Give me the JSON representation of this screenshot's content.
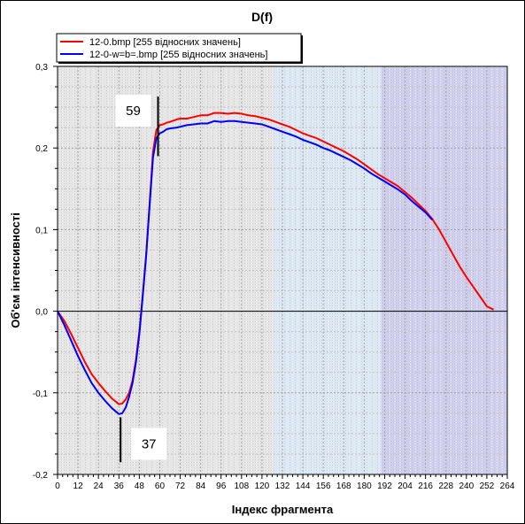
{
  "chart_data": {
    "type": "line",
    "title": "D(f)",
    "xlabel": "Індекс фрагмента",
    "ylabel": "Об'єм інтенсивності",
    "xlim": [
      0,
      264
    ],
    "ylim": [
      -0.2,
      0.3
    ],
    "xticks": [
      0,
      12,
      24,
      36,
      48,
      60,
      72,
      84,
      96,
      108,
      120,
      132,
      144,
      156,
      168,
      180,
      192,
      204,
      216,
      228,
      240,
      252,
      264
    ],
    "yticks": [
      -0.2,
      -0.1,
      0.0,
      0.1,
      0.2,
      0.3
    ],
    "ytick_labels": [
      "-0,2",
      "-0,1",
      "0,0",
      "0,1",
      "0,2",
      "0,3"
    ],
    "grid": true,
    "legend_position": "top-left",
    "background_bands": [
      {
        "from": 0,
        "to": 127,
        "color": "#e6e6e6"
      },
      {
        "from": 127,
        "to": 190,
        "color": "#dce9f5"
      },
      {
        "from": 190,
        "to": 264,
        "color": "#d0d0ee"
      }
    ],
    "series": [
      {
        "name": "12-0.bmp [255 відносних значень]",
        "color": "#ff0000",
        "points": [
          [
            0,
            0.0
          ],
          [
            4,
            -0.012
          ],
          [
            8,
            -0.028
          ],
          [
            12,
            -0.045
          ],
          [
            16,
            -0.062
          ],
          [
            20,
            -0.077
          ],
          [
            24,
            -0.088
          ],
          [
            28,
            -0.098
          ],
          [
            32,
            -0.107
          ],
          [
            36,
            -0.114
          ],
          [
            38,
            -0.113
          ],
          [
            40,
            -0.108
          ],
          [
            42,
            -0.1
          ],
          [
            44,
            -0.085
          ],
          [
            46,
            -0.06
          ],
          [
            48,
            -0.025
          ],
          [
            50,
            0.02
          ],
          [
            52,
            0.07
          ],
          [
            54,
            0.13
          ],
          [
            56,
            0.195
          ],
          [
            58,
            0.222
          ],
          [
            60,
            0.228
          ],
          [
            62,
            0.229
          ],
          [
            64,
            0.231
          ],
          [
            66,
            0.232
          ],
          [
            70,
            0.235
          ],
          [
            72,
            0.236
          ],
          [
            76,
            0.236
          ],
          [
            80,
            0.238
          ],
          [
            84,
            0.24
          ],
          [
            88,
            0.24
          ],
          [
            92,
            0.243
          ],
          [
            96,
            0.243
          ],
          [
            100,
            0.242
          ],
          [
            104,
            0.243
          ],
          [
            108,
            0.242
          ],
          [
            112,
            0.24
          ],
          [
            116,
            0.239
          ],
          [
            120,
            0.237
          ],
          [
            124,
            0.235
          ],
          [
            128,
            0.232
          ],
          [
            132,
            0.229
          ],
          [
            136,
            0.226
          ],
          [
            140,
            0.222
          ],
          [
            144,
            0.218
          ],
          [
            148,
            0.215
          ],
          [
            152,
            0.212
          ],
          [
            156,
            0.208
          ],
          [
            160,
            0.204
          ],
          [
            164,
            0.2
          ],
          [
            168,
            0.196
          ],
          [
            172,
            0.191
          ],
          [
            176,
            0.186
          ],
          [
            180,
            0.18
          ],
          [
            184,
            0.174
          ],
          [
            188,
            0.168
          ],
          [
            192,
            0.163
          ],
          [
            196,
            0.158
          ],
          [
            200,
            0.153
          ],
          [
            204,
            0.146
          ],
          [
            208,
            0.139
          ],
          [
            212,
            0.131
          ],
          [
            216,
            0.123
          ],
          [
            220,
            0.113
          ],
          [
            224,
            0.1
          ],
          [
            228,
            0.085
          ],
          [
            232,
            0.07
          ],
          [
            236,
            0.055
          ],
          [
            240,
            0.042
          ],
          [
            244,
            0.03
          ],
          [
            248,
            0.018
          ],
          [
            252,
            0.006
          ],
          [
            256,
            0.002
          ]
        ]
      },
      {
        "name": "12-0-w=b=.bmp [255 відносних значень]",
        "color": "#0000ff",
        "points": [
          [
            0,
            0.0
          ],
          [
            4,
            -0.017
          ],
          [
            8,
            -0.036
          ],
          [
            12,
            -0.055
          ],
          [
            16,
            -0.072
          ],
          [
            20,
            -0.088
          ],
          [
            24,
            -0.1
          ],
          [
            28,
            -0.11
          ],
          [
            32,
            -0.119
          ],
          [
            36,
            -0.126
          ],
          [
            38,
            -0.125
          ],
          [
            40,
            -0.118
          ],
          [
            42,
            -0.105
          ],
          [
            44,
            -0.088
          ],
          [
            46,
            -0.063
          ],
          [
            48,
            -0.028
          ],
          [
            50,
            0.018
          ],
          [
            52,
            0.068
          ],
          [
            54,
            0.128
          ],
          [
            56,
            0.188
          ],
          [
            58,
            0.212
          ],
          [
            60,
            0.218
          ],
          [
            62,
            0.22
          ],
          [
            64,
            0.223
          ],
          [
            66,
            0.224
          ],
          [
            70,
            0.225
          ],
          [
            72,
            0.226
          ],
          [
            76,
            0.228
          ],
          [
            80,
            0.229
          ],
          [
            84,
            0.23
          ],
          [
            88,
            0.23
          ],
          [
            92,
            0.233
          ],
          [
            96,
            0.232
          ],
          [
            100,
            0.233
          ],
          [
            104,
            0.233
          ],
          [
            108,
            0.232
          ],
          [
            112,
            0.231
          ],
          [
            116,
            0.23
          ],
          [
            120,
            0.229
          ],
          [
            124,
            0.226
          ],
          [
            128,
            0.223
          ],
          [
            132,
            0.22
          ],
          [
            136,
            0.217
          ],
          [
            140,
            0.214
          ],
          [
            144,
            0.21
          ],
          [
            148,
            0.207
          ],
          [
            152,
            0.204
          ],
          [
            156,
            0.2
          ],
          [
            160,
            0.197
          ],
          [
            164,
            0.193
          ],
          [
            168,
            0.189
          ],
          [
            172,
            0.185
          ],
          [
            176,
            0.18
          ],
          [
            180,
            0.175
          ],
          [
            184,
            0.169
          ],
          [
            188,
            0.164
          ],
          [
            192,
            0.159
          ],
          [
            196,
            0.154
          ],
          [
            200,
            0.149
          ],
          [
            204,
            0.143
          ],
          [
            208,
            0.135
          ],
          [
            212,
            0.128
          ],
          [
            216,
            0.121
          ],
          [
            220,
            0.112
          ]
        ]
      }
    ],
    "annotations": [
      {
        "text": "59",
        "x": 59,
        "line_from": 0.19,
        "line_to": 0.263
      },
      {
        "text": "37",
        "x": 37,
        "line_from": -0.185,
        "line_to": -0.13
      }
    ]
  }
}
